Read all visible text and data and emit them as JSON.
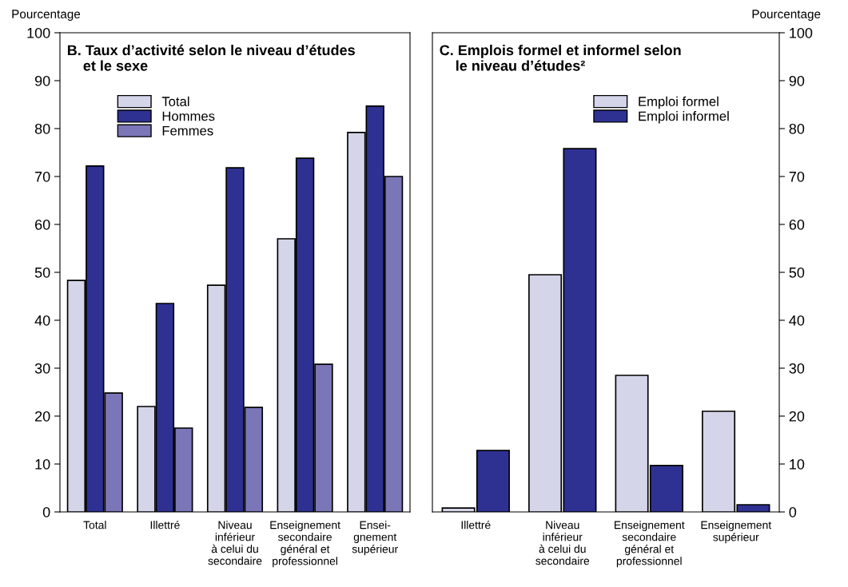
{
  "chart_data": [
    {
      "type": "bar",
      "title": "B. Taux d’activité selon le niveau d’études\n    et le sexe",
      "ylabel": "Pourcentage",
      "categories": [
        "Total",
        "Illettré",
        "Niveau\ninférieur\nà celui du\nsecondaire",
        "Enseignement\nsecondaire\ngénéral et\nprofessionnel",
        "Ensei-\ngnement\nsupérieur"
      ],
      "series": [
        {
          "name": "Total",
          "color": "#d5d5ea",
          "values": [
            48.3,
            22,
            47.3,
            57,
            79.2
          ]
        },
        {
          "name": "Hommes",
          "color": "#2e3192",
          "values": [
            72.2,
            43.5,
            71.8,
            73.8,
            84.7
          ]
        },
        {
          "name": "Femmes",
          "color": "#7b76b8",
          "values": [
            24.8,
            17.5,
            21.8,
            30.8,
            70
          ]
        }
      ],
      "ylim": [
        0,
        100
      ],
      "yticks": [
        0,
        10,
        20,
        30,
        40,
        50,
        60,
        70,
        80,
        90,
        100
      ],
      "grid": false,
      "legend": "top"
    },
    {
      "type": "bar",
      "title": "C. Emplois formel et informel selon\n    le niveau d’études²",
      "y2label": "Pourcentage",
      "categories": [
        "Illettré",
        "Niveau\ninférieur\nà celui du\nsecondaire",
        "Enseignement\nsecondaire\ngénéral et\nprofessionnel",
        "Enseignement\nsupérieur"
      ],
      "series": [
        {
          "name": "Emploi formel",
          "color": "#d5d5ea",
          "axis": "y2",
          "values": [
            0.8,
            49.5,
            28.5,
            21
          ]
        },
        {
          "name": "Emploi informel",
          "color": "#2e3192",
          "axis": "y2",
          "values": [
            12.8,
            75.8,
            9.7,
            1.5
          ]
        }
      ],
      "y2lim": [
        0,
        100
      ],
      "y2ticks": [
        0,
        10,
        20,
        30,
        40,
        50,
        60,
        70,
        80,
        90,
        100
      ],
      "grid": false,
      "legend": "top right"
    }
  ]
}
